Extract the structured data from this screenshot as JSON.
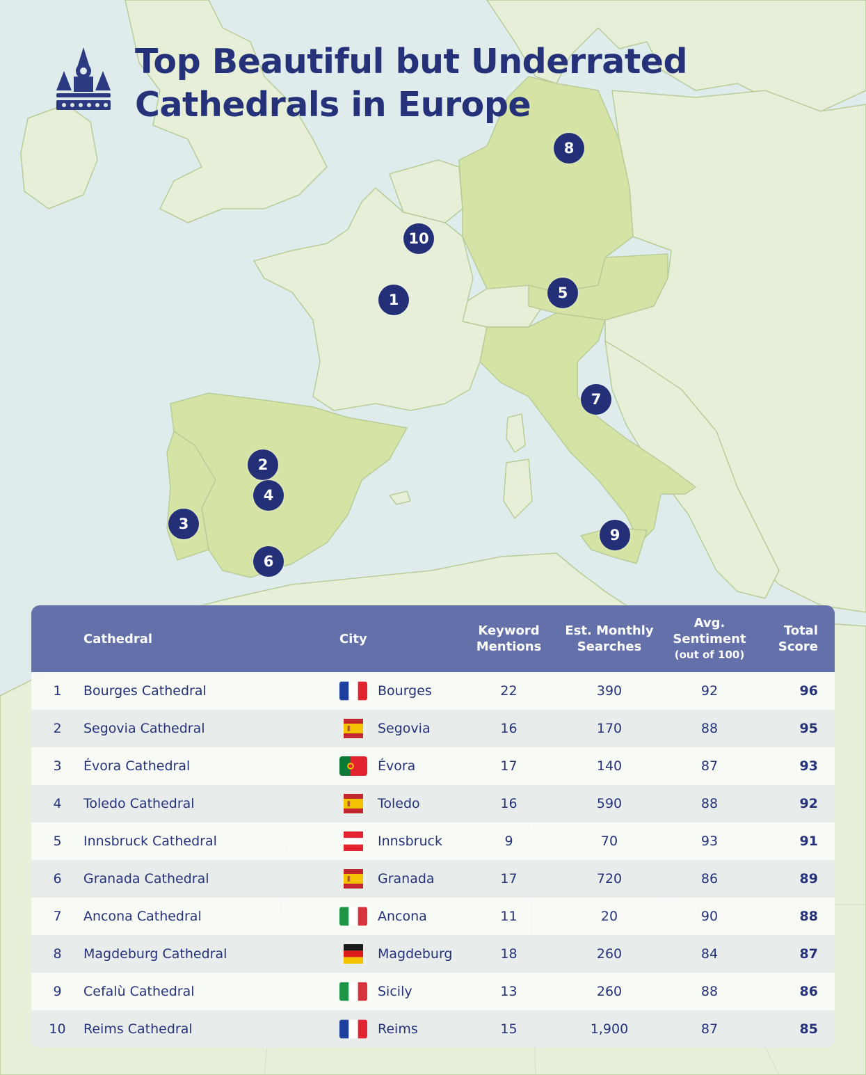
{
  "title": {
    "line1": "Top Beautiful but Underrated",
    "line2": "Cathedrals in Europe",
    "icon": "cathedral-icon"
  },
  "map": {
    "colors": {
      "sea": "#dfeceb",
      "land": "#e7efd9",
      "highlighted_land": "#d5e3a5",
      "border": "#b8cc98",
      "marker": "#233078"
    },
    "highlighted_countries": [
      "France",
      "Spain",
      "Portugal",
      "Austria",
      "Italy",
      "Germany"
    ],
    "markers": [
      "1",
      "2",
      "3",
      "4",
      "5",
      "6",
      "7",
      "8",
      "9",
      "10"
    ]
  },
  "table": {
    "colors": {
      "header_bg": "#6370a9",
      "text": "#25327a"
    },
    "headers": {
      "cathedral": "Cathedral",
      "city": "City",
      "keyword_mentions_1": "Keyword",
      "keyword_mentions_2": "Mentions",
      "searches_1": "Est. Monthly",
      "searches_2": "Searches",
      "sentiment_1": "Avg.",
      "sentiment_2": "Sentiment",
      "sentiment_3": "(out of 100)",
      "total_1": "Total",
      "total_2": "Score"
    },
    "rows": [
      {
        "rank": "1",
        "cathedral": "Bourges Cathedral",
        "flag": "france-flag-icon",
        "city": "Bourges",
        "mentions": "22",
        "searches": "390",
        "sentiment": "92",
        "total": "96"
      },
      {
        "rank": "2",
        "cathedral": "Segovia Cathedral",
        "flag": "spain-flag-icon",
        "city": "Segovia",
        "mentions": "16",
        "searches": "170",
        "sentiment": "88",
        "total": "95"
      },
      {
        "rank": "3",
        "cathedral": "Évora Cathedral",
        "flag": "portugal-flag-icon",
        "city": "Évora",
        "mentions": "17",
        "searches": "140",
        "sentiment": "87",
        "total": "93"
      },
      {
        "rank": "4",
        "cathedral": "Toledo Cathedral",
        "flag": "spain-flag-icon",
        "city": "Toledo",
        "mentions": "16",
        "searches": "590",
        "sentiment": "88",
        "total": "92"
      },
      {
        "rank": "5",
        "cathedral": "Innsbruck Cathedral",
        "flag": "austria-flag-icon",
        "city": "Innsbruck",
        "mentions": "9",
        "searches": "70",
        "sentiment": "93",
        "total": "91"
      },
      {
        "rank": "6",
        "cathedral": "Granada Cathedral",
        "flag": "spain-flag-icon",
        "city": "Granada",
        "mentions": "17",
        "searches": "720",
        "sentiment": "86",
        "total": "89"
      },
      {
        "rank": "7",
        "cathedral": "Ancona Cathedral",
        "flag": "italy-flag-icon",
        "city": "Ancona",
        "mentions": "11",
        "searches": "20",
        "sentiment": "90",
        "total": "88"
      },
      {
        "rank": "8",
        "cathedral": "Magdeburg Cathedral",
        "flag": "germany-flag-icon",
        "city": "Magdeburg",
        "mentions": "18",
        "searches": "260",
        "sentiment": "84",
        "total": "87"
      },
      {
        "rank": "9",
        "cathedral": "Cefalù Cathedral",
        "flag": "italy-flag-icon",
        "city": "Sicily",
        "mentions": "13",
        "searches": "260",
        "sentiment": "88",
        "total": "86"
      },
      {
        "rank": "10",
        "cathedral": "Reims Cathedral",
        "flag": "france-flag-icon",
        "city": "Reims",
        "mentions": "15",
        "searches": "1,900",
        "sentiment": "87",
        "total": "85"
      }
    ]
  }
}
